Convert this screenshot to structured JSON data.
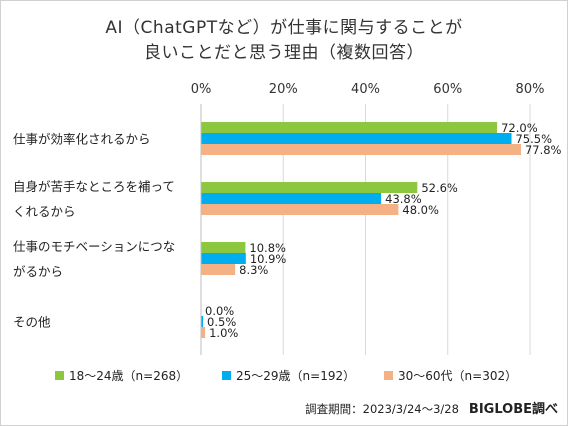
{
  "chart_data": {
    "type": "bar",
    "orientation": "horizontal",
    "title_lines": [
      "AI（ChatGPTなど）が仕事に関与することが",
      "良いことだと思う理由（複数回答）"
    ],
    "categories": [
      [
        "仕事が効率化されるから"
      ],
      [
        "自身が苦手なところを補って",
        "くれるから"
      ],
      [
        "仕事のモチベーションにつな",
        "がるから"
      ],
      [
        "その他"
      ]
    ],
    "series": [
      {
        "name": "18～24歳（n=268）",
        "color": "#8dc63f",
        "values": [
          72.0,
          52.6,
          10.8,
          0.0
        ],
        "labels": [
          "72.0%",
          "52.6%",
          "10.8%",
          "0.0%"
        ]
      },
      {
        "name": "25～29歳（n=192）",
        "color": "#00aeef",
        "values": [
          75.5,
          43.8,
          10.9,
          0.5
        ],
        "labels": [
          "75.5%",
          "43.8%",
          "10.9%",
          "0.5%"
        ]
      },
      {
        "name": "30～60代（n=302）",
        "color": "#f4b183",
        "values": [
          77.8,
          48.0,
          8.3,
          1.0
        ],
        "labels": [
          "77.8%",
          "48.0%",
          "8.3%",
          "1.0%"
        ]
      }
    ],
    "xlim": [
      0,
      80
    ],
    "ticks": [
      "0%",
      "20%",
      "40%",
      "60%",
      "80%"
    ],
    "tick_values": [
      0,
      20,
      40,
      60,
      80
    ],
    "grid": true,
    "legend_position": "bottom"
  },
  "footer": {
    "source": "調査期間：2023/3/24～3/28",
    "brand": "BIGLOBE調べ"
  }
}
